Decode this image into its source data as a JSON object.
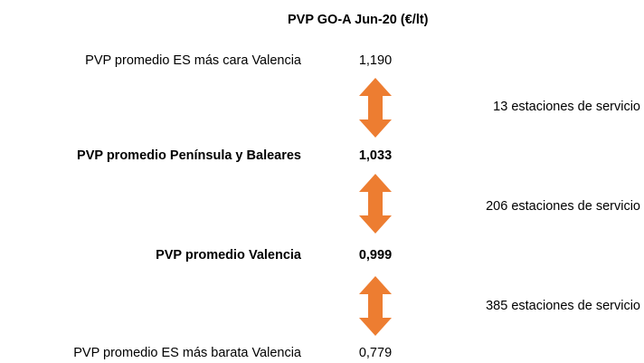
{
  "header": {
    "title": "PVP GO-A Jun-20 (€/lt)"
  },
  "rows": [
    {
      "label": "PVP promedio ES más cara Valencia",
      "value": "1,190"
    },
    {
      "label": "PVP promedio Península y Baleares",
      "value": "1,033"
    },
    {
      "label": "PVP promedio Valencia",
      "value": "0,999"
    },
    {
      "label": "PVP promedio ES más barata Valencia",
      "value": "0,779"
    }
  ],
  "gaps": [
    {
      "label": "13 estaciones de servicio"
    },
    {
      "label": "206 estaciones de servicio"
    },
    {
      "label": "385 estaciones de servicio"
    }
  ]
}
